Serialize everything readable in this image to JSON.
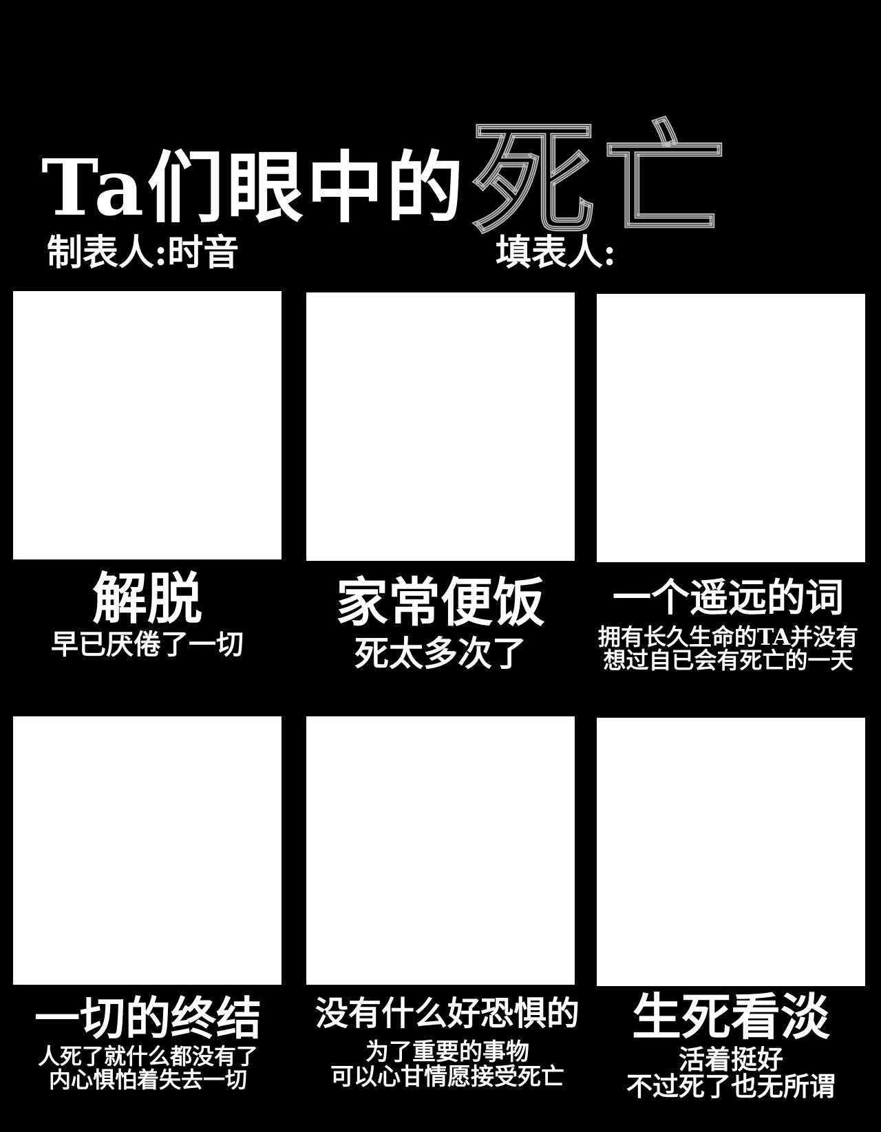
{
  "header": {
    "title_main": "Ta们眼中的",
    "title_death": "死亡",
    "maker_label": "制表人:时音",
    "filler_label": "填表人:"
  },
  "cells": [
    {
      "title": "解脱",
      "lines": [
        "早已厌倦了一切"
      ]
    },
    {
      "title": "家常便饭",
      "lines": [
        "死太多次了"
      ]
    },
    {
      "title": "一个遥远的词",
      "lines": [
        "拥有长久生命的TA并没有",
        "想过自已会有死亡的一天"
      ]
    },
    {
      "title": "一切的终结",
      "lines": [
        "人死了就什么都没有了",
        "内心惧怕着失去一切"
      ]
    },
    {
      "title": "没有什么好恐惧的",
      "lines": [
        "为了重要的事物",
        "可以心甘情愿接受死亡"
      ]
    },
    {
      "title": "生死看淡",
      "lines": [
        "活着挺好",
        "不过死了也无所谓"
      ]
    }
  ]
}
